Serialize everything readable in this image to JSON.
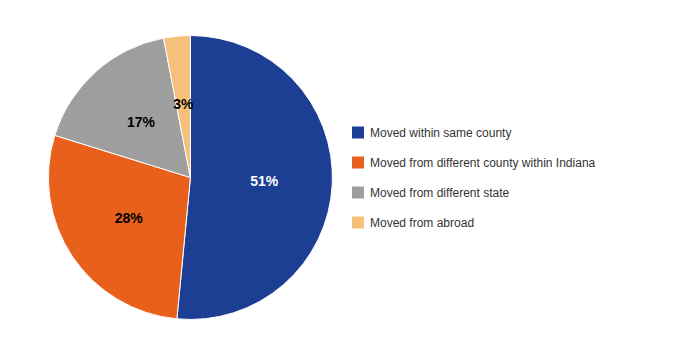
{
  "chart_data": {
    "type": "pie",
    "categories": [
      "Moved within same county",
      "Moved from different county within Indiana",
      "Moved from different state",
      "Moved from abroad"
    ],
    "values": [
      51,
      28,
      17,
      3
    ],
    "value_labels": [
      "51%",
      "28%",
      "17%",
      "3%"
    ],
    "colors": [
      "#1c3f94",
      "#e8601c",
      "#9e9e9e",
      "#f5c07a"
    ],
    "data_labels": true,
    "legend": "right"
  }
}
